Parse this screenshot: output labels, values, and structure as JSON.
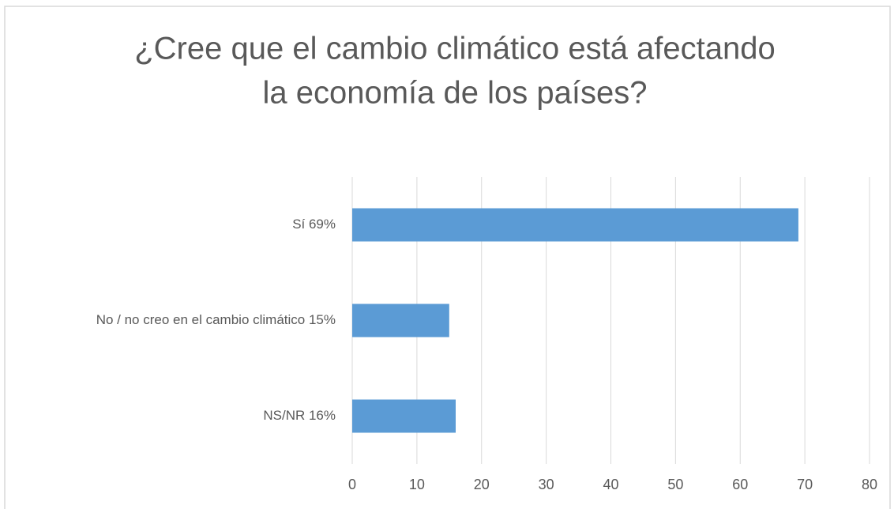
{
  "chart_data": {
    "type": "barh",
    "title": [
      "¿Cree que el cambio climático está afectando",
      "la economía de los países?"
    ],
    "categories": [
      "Sí  69%",
      "No / no creo en el cambio climático  15%",
      "NS/NR  16%"
    ],
    "values": [
      69,
      15,
      16
    ],
    "color": "#5b9bd5",
    "xlim": [
      0,
      80
    ],
    "xticks": [
      0,
      10,
      20,
      30,
      40,
      50,
      60,
      70,
      80
    ],
    "grid": true
  }
}
